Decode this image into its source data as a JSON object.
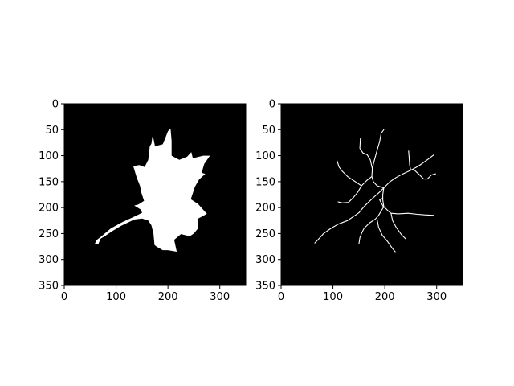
{
  "chart_data": [
    {
      "type": "image",
      "title": "",
      "xlabel": "",
      "ylabel": "",
      "xlim": [
        0,
        350
      ],
      "ylim": [
        350,
        0
      ],
      "xticks": [
        0,
        100,
        200,
        300
      ],
      "xtick_labels": [
        "0",
        "100",
        "200",
        "300"
      ],
      "yticks": [
        0,
        50,
        100,
        150,
        200,
        250,
        300,
        350
      ],
      "ytick_labels": [
        "0",
        "50",
        "100",
        "150",
        "200",
        "250",
        "300",
        "350"
      ],
      "colormap": "gray",
      "background_color": "#000000",
      "foreground_color": "#ffffff",
      "content": "binary leaf mask",
      "outline": [
        [
          59,
          270
        ],
        [
          62,
          263
        ],
        [
          72,
          255
        ],
        [
          90,
          240
        ],
        [
          112,
          228
        ],
        [
          136,
          217
        ],
        [
          150,
          210
        ],
        [
          148,
          204
        ],
        [
          135,
          196
        ],
        [
          143,
          194
        ],
        [
          154,
          187
        ],
        [
          149,
          172
        ],
        [
          146,
          158
        ],
        [
          140,
          143
        ],
        [
          133,
          120
        ],
        [
          145,
          118
        ],
        [
          155,
          122
        ],
        [
          162,
          108
        ],
        [
          165,
          82
        ],
        [
          168,
          77
        ],
        [
          170,
          63
        ],
        [
          172,
          67
        ],
        [
          175,
          82
        ],
        [
          190,
          78
        ],
        [
          196,
          63
        ],
        [
          200,
          53
        ],
        [
          205,
          48
        ],
        [
          207,
          72
        ],
        [
          207,
          100
        ],
        [
          222,
          108
        ],
        [
          237,
          102
        ],
        [
          245,
          93
        ],
        [
          248,
          105
        ],
        [
          268,
          100
        ],
        [
          281,
          100
        ],
        [
          270,
          116
        ],
        [
          265,
          133
        ],
        [
          272,
          135
        ],
        [
          260,
          146
        ],
        [
          252,
          160
        ],
        [
          244,
          184
        ],
        [
          258,
          193
        ],
        [
          275,
          212
        ],
        [
          257,
          222
        ],
        [
          258,
          240
        ],
        [
          250,
          250
        ],
        [
          242,
          255
        ],
        [
          225,
          251
        ],
        [
          212,
          262
        ],
        [
          217,
          285
        ],
        [
          200,
          282
        ],
        [
          190,
          282
        ],
        [
          178,
          275
        ],
        [
          174,
          272
        ],
        [
          172,
          250
        ],
        [
          168,
          234
        ],
        [
          162,
          225
        ],
        [
          150,
          221
        ],
        [
          135,
          223
        ],
        [
          110,
          235
        ],
        [
          93,
          245
        ],
        [
          78,
          255
        ],
        [
          70,
          260
        ],
        [
          66,
          270
        ]
      ]
    },
    {
      "type": "image",
      "title": "",
      "xlabel": "",
      "ylabel": "",
      "xlim": [
        0,
        350
      ],
      "ylim": [
        350,
        0
      ],
      "xticks": [
        0,
        100,
        200,
        300
      ],
      "xtick_labels": [
        "0",
        "100",
        "200",
        "300"
      ],
      "yticks": [
        0,
        50,
        100,
        150,
        200,
        250,
        300,
        350
      ],
      "ytick_labels": [
        "0",
        "50",
        "100",
        "150",
        "200",
        "250",
        "300",
        "350"
      ],
      "colormap": "gray",
      "background_color": "#000000",
      "foreground_color": "#ffffff",
      "content": "leaf skeleton",
      "strokes": [
        [
          [
            198,
            162
          ],
          [
            190,
            170
          ],
          [
            181,
            178
          ],
          [
            168,
            190
          ],
          [
            160,
            198
          ],
          [
            150,
            210
          ],
          [
            140,
            217
          ],
          [
            128,
            225
          ],
          [
            110,
            232
          ],
          [
            96,
            240
          ],
          [
            82,
            250
          ],
          [
            73,
            260
          ],
          [
            65,
            268
          ]
        ],
        [
          [
            198,
            162
          ],
          [
            210,
            150
          ],
          [
            222,
            142
          ],
          [
            235,
            135
          ],
          [
            250,
            128
          ],
          [
            265,
            120
          ],
          [
            282,
            108
          ],
          [
            295,
            98
          ]
        ],
        [
          [
            198,
            162
          ],
          [
            196,
            175
          ],
          [
            196,
            185
          ],
          [
            198,
            198
          ]
        ],
        [
          [
            198,
            198
          ],
          [
            188,
            215
          ],
          [
            182,
            222
          ],
          [
            170,
            230
          ],
          [
            160,
            240
          ],
          [
            156,
            248
          ],
          [
            152,
            258
          ],
          [
            150,
            270
          ]
        ],
        [
          [
            198,
            198
          ],
          [
            205,
            205
          ],
          [
            212,
            211
          ],
          [
            226,
            212
          ],
          [
            245,
            211
          ],
          [
            263,
            213
          ],
          [
            277,
            214
          ],
          [
            295,
            215
          ]
        ],
        [
          [
            198,
            162
          ],
          [
            185,
            158
          ],
          [
            178,
            150
          ],
          [
            175,
            140
          ],
          [
            176,
            125
          ],
          [
            179,
            112
          ],
          [
            185,
            90
          ],
          [
            190,
            73
          ],
          [
            193,
            57
          ],
          [
            198,
            50
          ]
        ],
        [
          [
            175,
            140
          ],
          [
            165,
            148
          ],
          [
            155,
            158
          ],
          [
            148,
            170
          ],
          [
            140,
            180
          ],
          [
            130,
            190
          ],
          [
            118,
            191
          ],
          [
            110,
            189
          ]
        ],
        [
          [
            155,
            158
          ],
          [
            140,
            148
          ],
          [
            128,
            140
          ],
          [
            118,
            130
          ],
          [
            112,
            122
          ],
          [
            108,
            110
          ]
        ],
        [
          [
            176,
            125
          ],
          [
            172,
            108
          ],
          [
            166,
            98
          ],
          [
            158,
            95
          ],
          [
            152,
            86
          ],
          [
            153,
            66
          ]
        ],
        [
          [
            250,
            128
          ],
          [
            248,
            118
          ],
          [
            247,
            105
          ],
          [
            246,
            91
          ]
        ],
        [
          [
            255,
            126
          ],
          [
            265,
            135
          ],
          [
            275,
            145
          ],
          [
            282,
            145
          ],
          [
            290,
            137
          ],
          [
            298,
            135
          ]
        ],
        [
          [
            198,
            200
          ],
          [
            190,
            185
          ],
          [
            196,
            182
          ]
        ],
        [
          [
            185,
            222
          ],
          [
            188,
            238
          ],
          [
            195,
            253
          ],
          [
            205,
            265
          ],
          [
            215,
            279
          ],
          [
            220,
            285
          ]
        ],
        [
          [
            212,
            211
          ],
          [
            215,
            225
          ],
          [
            222,
            238
          ],
          [
            232,
            252
          ],
          [
            240,
            260
          ]
        ]
      ]
    }
  ]
}
